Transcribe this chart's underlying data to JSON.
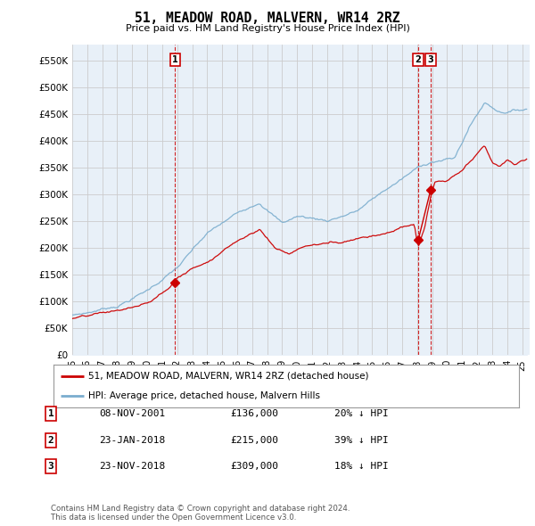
{
  "title": "51, MEADOW ROAD, MALVERN, WR14 2RZ",
  "subtitle": "Price paid vs. HM Land Registry's House Price Index (HPI)",
  "ylabel_ticks": [
    "£0",
    "£50K",
    "£100K",
    "£150K",
    "£200K",
    "£250K",
    "£300K",
    "£350K",
    "£400K",
    "£450K",
    "£500K",
    "£550K"
  ],
  "ytick_values": [
    0,
    50000,
    100000,
    150000,
    200000,
    250000,
    300000,
    350000,
    400000,
    450000,
    500000,
    550000
  ],
  "ylim": [
    0,
    580000
  ],
  "xlim_start": 1995.0,
  "xlim_end": 2025.5,
  "transactions": [
    {
      "date_num": 2001.86,
      "price": 136000,
      "label": "1"
    },
    {
      "date_num": 2018.07,
      "price": 215000,
      "label": "2"
    },
    {
      "date_num": 2018.9,
      "price": 309000,
      "label": "3"
    }
  ],
  "legend_entries": [
    "51, MEADOW ROAD, MALVERN, WR14 2RZ (detached house)",
    "HPI: Average price, detached house, Malvern Hills"
  ],
  "table_rows": [
    [
      "1",
      "08-NOV-2001",
      "£136,000",
      "20% ↓ HPI"
    ],
    [
      "2",
      "23-JAN-2018",
      "£215,000",
      "39% ↓ HPI"
    ],
    [
      "3",
      "23-NOV-2018",
      "£309,000",
      "18% ↓ HPI"
    ]
  ],
  "footnote": "Contains HM Land Registry data © Crown copyright and database right 2024.\nThis data is licensed under the Open Government Licence v3.0.",
  "red_color": "#cc0000",
  "blue_color": "#7aadce",
  "blue_fill": "#ddeeff",
  "bg_color": "#ffffff",
  "grid_color": "#cccccc",
  "plot_bg": "#e8f0f8"
}
